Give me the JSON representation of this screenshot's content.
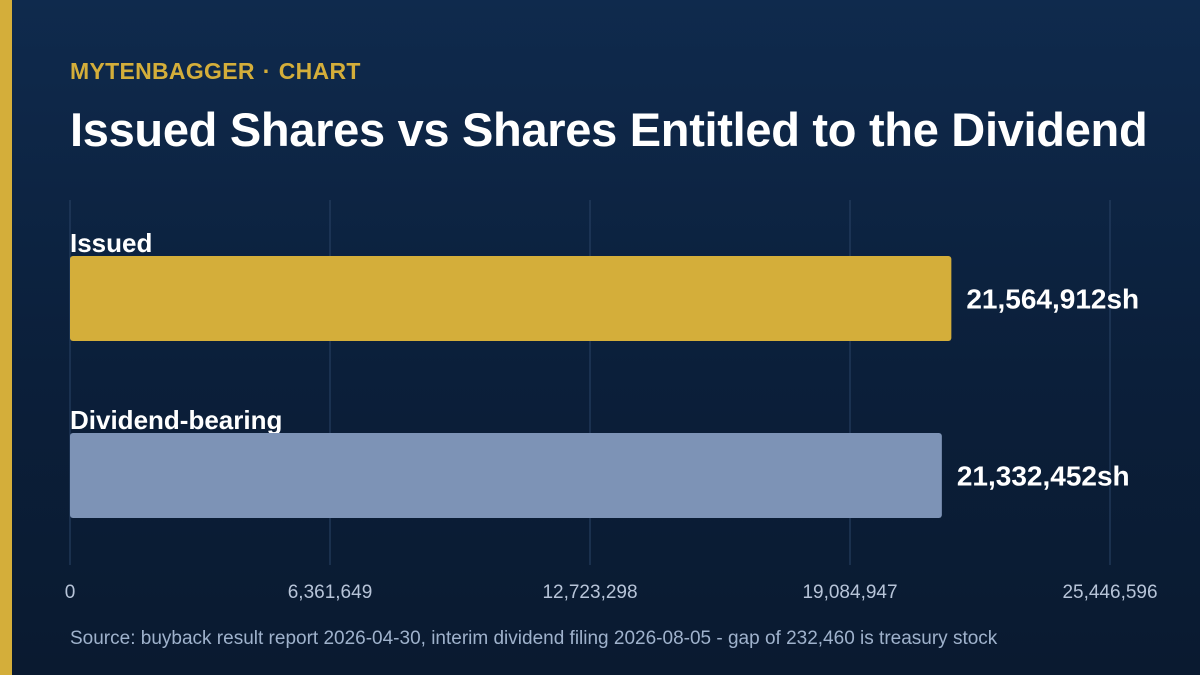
{
  "header": {
    "brand": "MYTENBAGGER",
    "separator": "·",
    "section": "CHART",
    "title": "Issued Shares vs Shares Entitled to the Dividend"
  },
  "footer": {
    "source": "Source: buyback result report 2026-04-30, interim dividend filing 2026-08-05 - gap of 232,460 is treasury stock"
  },
  "colors": {
    "accent": "#d4ae3a",
    "issued_bar": "#d4ae3a",
    "dividend_bar": "#7d93b6",
    "grid": "#2a4366",
    "tick_label": "#b7c4d8"
  },
  "chart_data": {
    "type": "bar",
    "orientation": "horizontal",
    "categories": [
      "Issued",
      "Dividend-bearing"
    ],
    "values": [
      21564912,
      21332452
    ],
    "value_labels": [
      "21,564,912sh",
      "21,332,452sh"
    ],
    "xlim": [
      0,
      25446596
    ],
    "xticks": [
      0,
      6361649,
      12723298,
      19084947,
      25446596
    ],
    "xtick_labels": [
      "0",
      "6,361,649",
      "12,723,298",
      "19,084,947",
      "25,446,596"
    ],
    "grid": true,
    "legend": "none"
  }
}
